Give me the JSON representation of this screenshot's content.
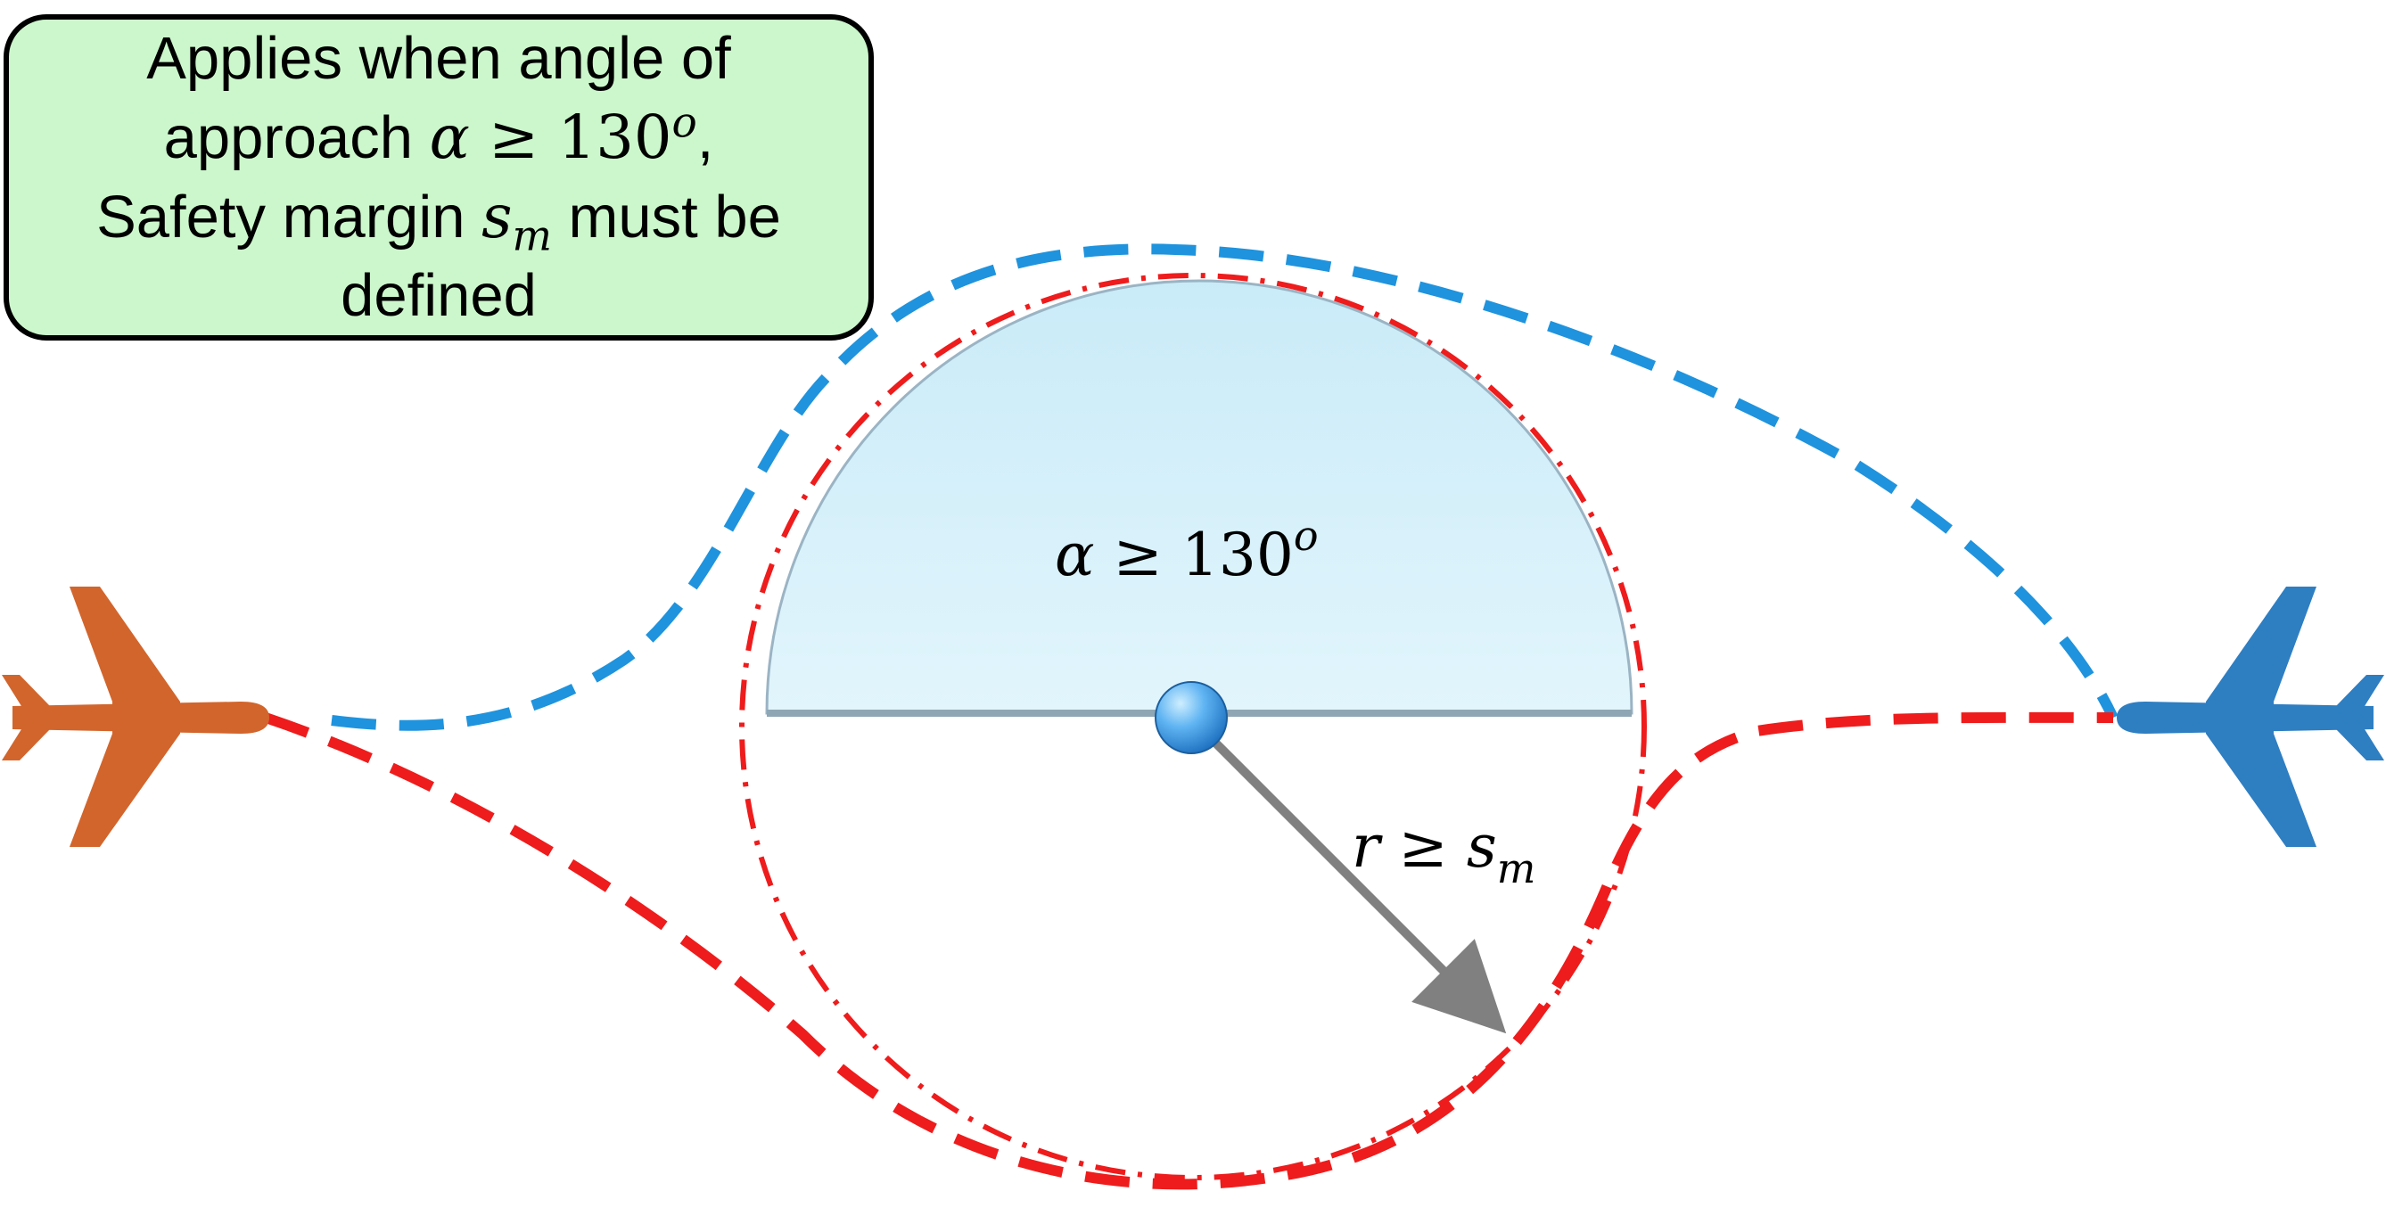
{
  "note": {
    "line1": "Applies when angle of",
    "line2_text": "approach ",
    "line2_math_var": "α",
    "line2_math_rel": " ≥ 130",
    "line2_math_sup": "o",
    "line2_tail": ",",
    "line3_text": "Safety margin ",
    "line3_math_var": "s",
    "line3_math_sub": "m",
    "line3_tail": " must be",
    "line4": "defined"
  },
  "sector_label": {
    "var": "α",
    "rel": " ≥ 130",
    "sup": "o"
  },
  "radius_label": {
    "var": "r",
    "rel": " ≥ ",
    "var2": "s",
    "sub": "m"
  },
  "colors": {
    "orange_aircraft": "#d2652c",
    "blue_aircraft": "#2e7ec2",
    "blue_path": "#1f93dd",
    "red_path": "#ee1c1c",
    "sector_fill": "#d5f0fa",
    "radius_arrow": "#808080",
    "note_fill": "#ccf7cc"
  },
  "icons": {
    "left_aircraft": "airplane-icon",
    "right_aircraft": "airplane-icon",
    "center_point": "sphere-icon"
  }
}
